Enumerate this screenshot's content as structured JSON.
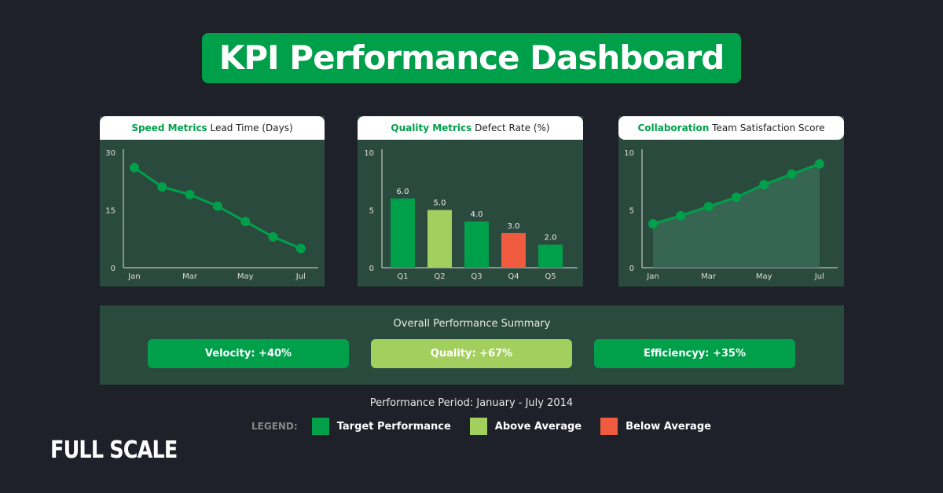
{
  "title": "KPI Performance Dashboard",
  "colors": {
    "target": "#00a04b",
    "above": "#a3cf5f",
    "below": "#f05a3e",
    "panel": "#2b4a3e",
    "background": "#1e212a"
  },
  "chart_data": [
    {
      "type": "line",
      "title_bold": "Speed Metrics",
      "title": "Lead Time (Days)",
      "x": [
        "Jan",
        "Feb",
        "Mar",
        "Apr",
        "May",
        "Jun",
        "Jul"
      ],
      "x_tick_labels": [
        "Jan",
        "Mar",
        "May",
        "Jul"
      ],
      "values": [
        26,
        21,
        19,
        16,
        12,
        8,
        5
      ],
      "ylim": [
        0,
        30
      ],
      "y_ticks": [
        "0",
        "15",
        "30"
      ],
      "grid": false
    },
    {
      "type": "bar",
      "title_bold": "Quality Metrics",
      "title": "Defect Rate (%)",
      "categories": [
        "Q1",
        "Q2",
        "Q3",
        "Q4",
        "Q5"
      ],
      "values": [
        6.0,
        5.0,
        4.0,
        3.0,
        2.0
      ],
      "data_labels": [
        "6.0",
        "5.0",
        "4.0",
        "3.0",
        "2.0"
      ],
      "bar_colors": [
        "target",
        "above",
        "target",
        "below",
        "target"
      ],
      "ylim": [
        0,
        10
      ],
      "y_ticks": [
        "0",
        "5",
        "10"
      ],
      "grid": false
    },
    {
      "type": "area",
      "title_bold": "Collaboration",
      "title": "Team Satisfaction Score",
      "x": [
        "Jan",
        "Feb",
        "Mar",
        "Apr",
        "May",
        "Jun",
        "Jul"
      ],
      "x_tick_labels": [
        "Jan",
        "Mar",
        "May",
        "Jul"
      ],
      "values": [
        3.8,
        4.5,
        5.3,
        6.1,
        7.2,
        8.1,
        9.0
      ],
      "ylim": [
        0,
        10
      ],
      "y_ticks": [
        "0",
        "5",
        "10"
      ],
      "grid": false
    }
  ],
  "summary": {
    "title": "Overall Performance Summary",
    "pills": [
      {
        "label": "Velocity: +40%",
        "color": "target"
      },
      {
        "label": "Quality: +67%",
        "color": "above"
      },
      {
        "label": "Efficiencyy: +35%",
        "color": "target"
      }
    ]
  },
  "period": "Performance Period: January - July 2014",
  "legend": {
    "label": "LEGEND:",
    "items": [
      "Target Performance",
      "Above Average",
      "Below Average"
    ]
  },
  "brand": "FULL SCALE"
}
